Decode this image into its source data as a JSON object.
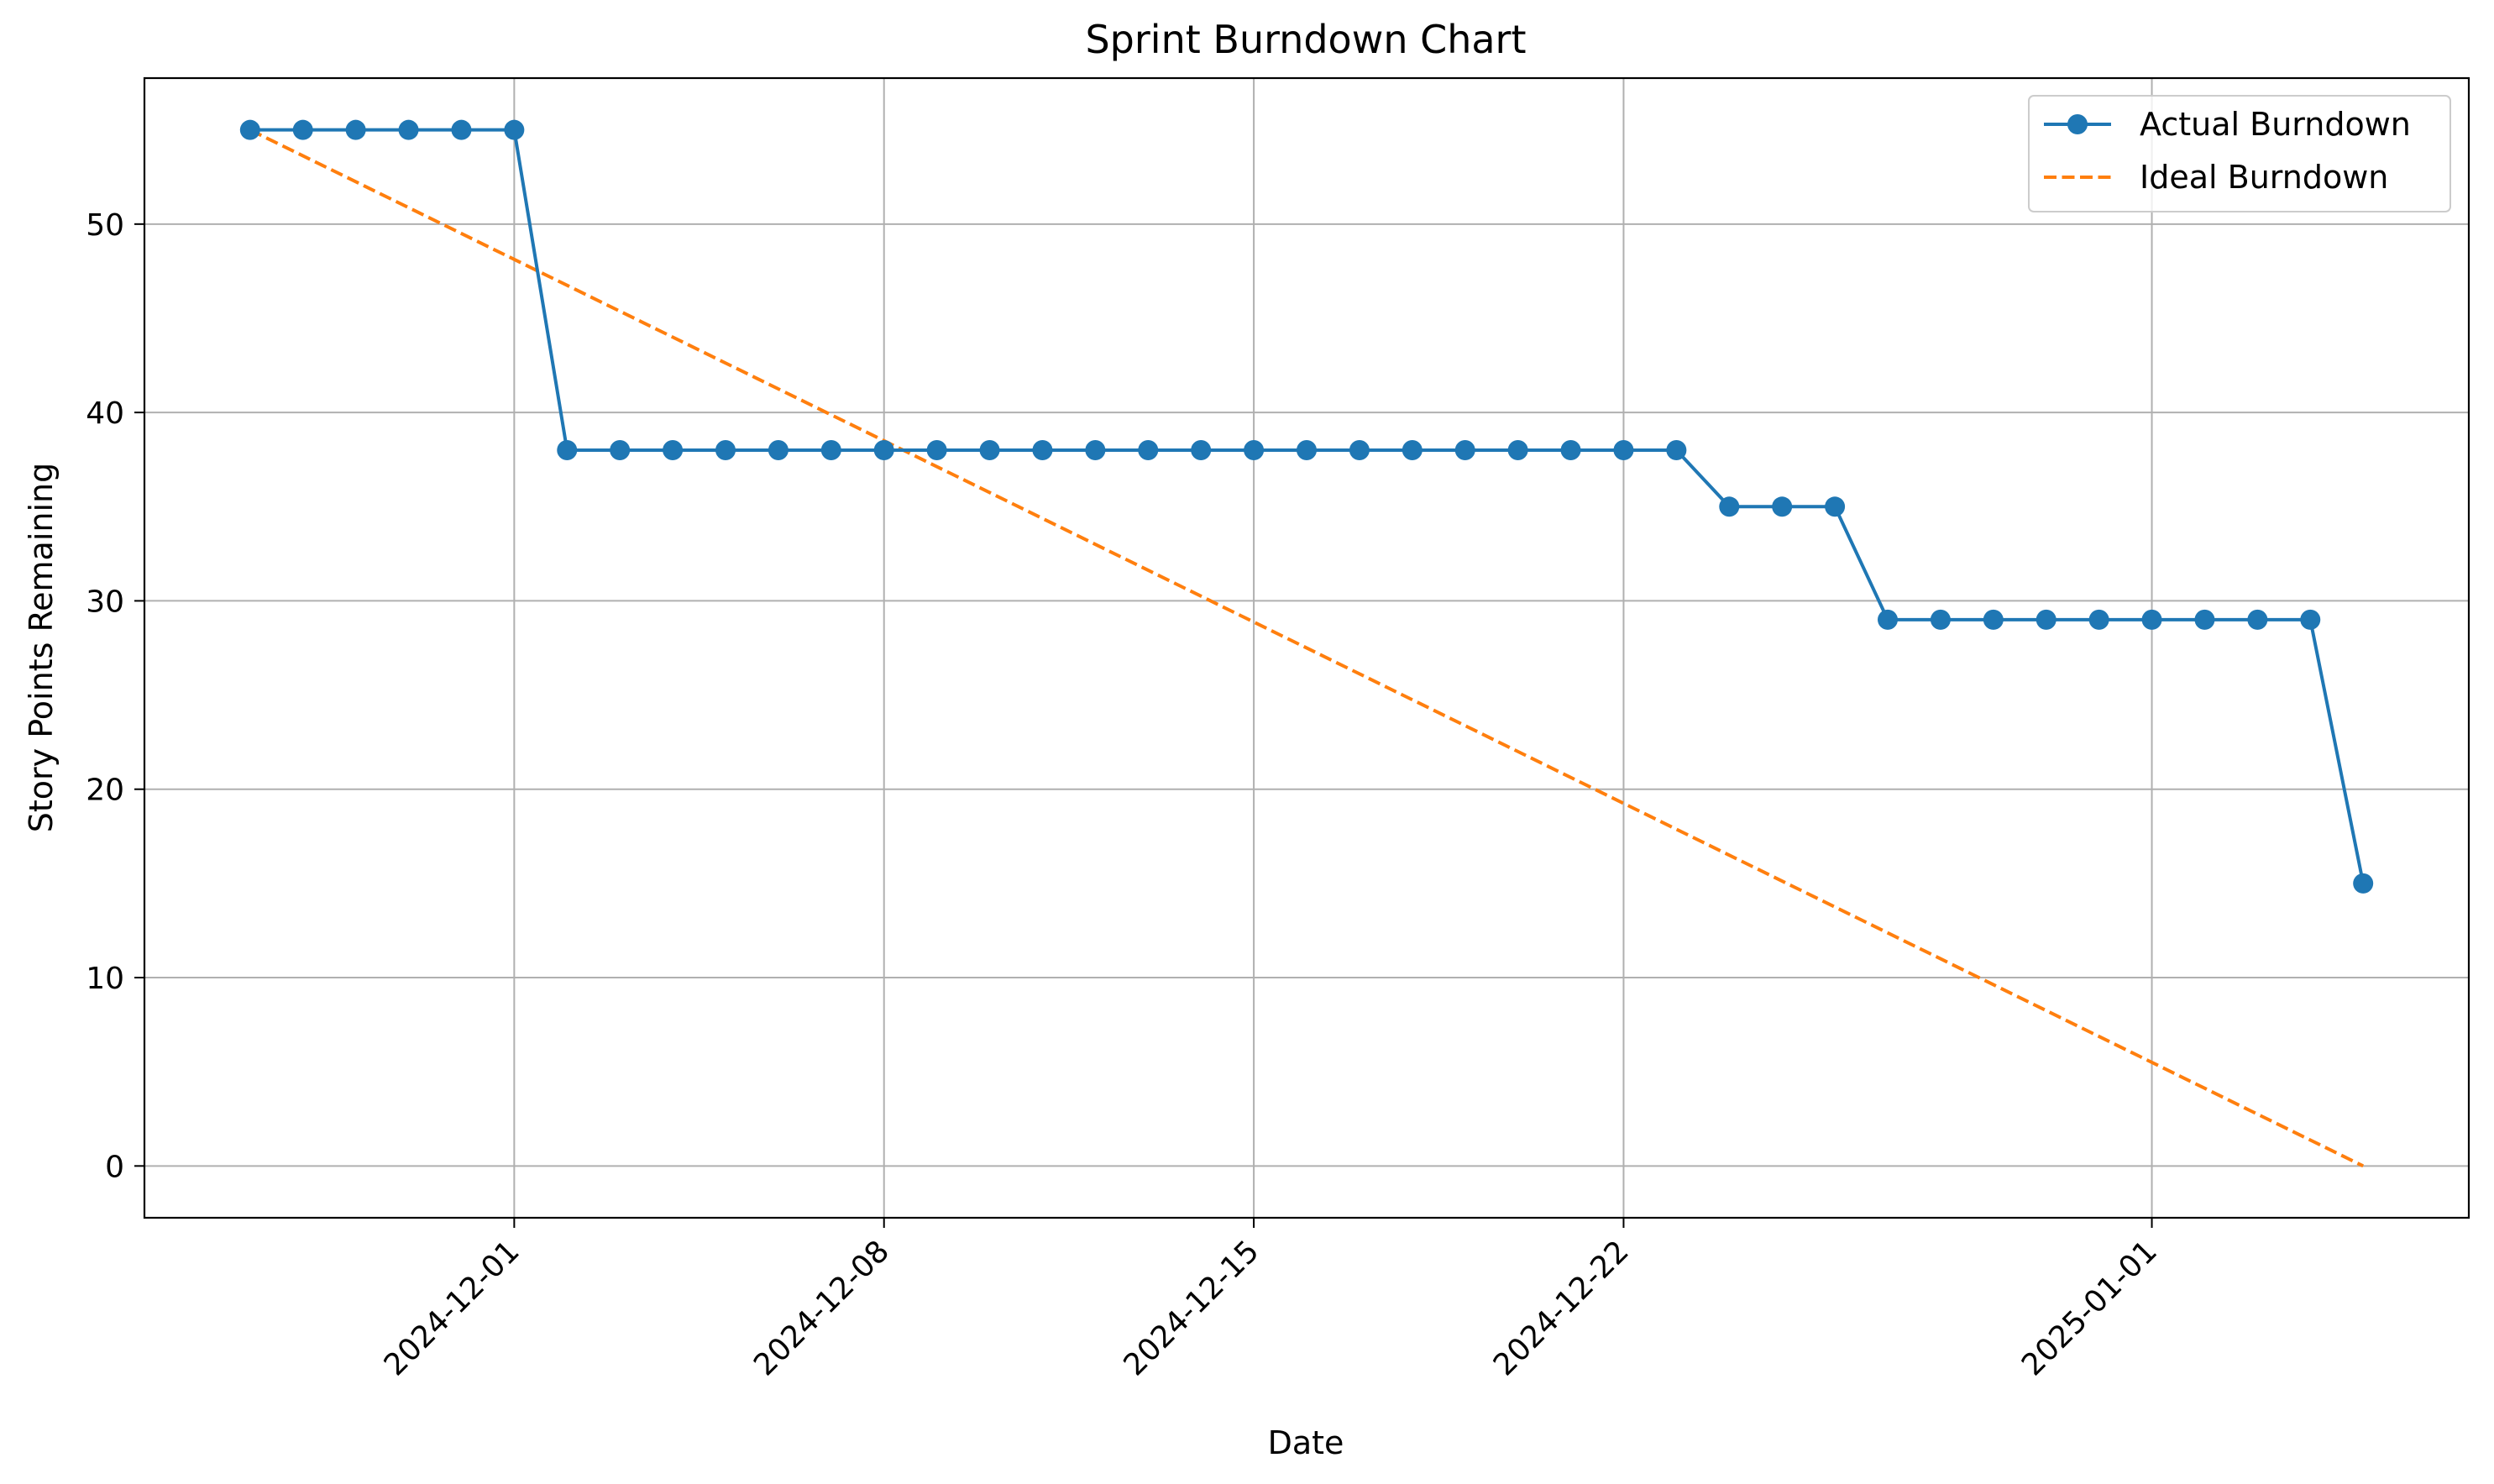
{
  "chart_data": {
    "type": "line",
    "title": "Sprint Burndown Chart",
    "xlabel": "Date",
    "ylabel": "Story Points Remaining",
    "x_tick_labels": [
      "2024-12-01",
      "2024-12-08",
      "2024-12-15",
      "2024-12-22",
      "2025-01-01"
    ],
    "y_ticks": [
      0,
      10,
      20,
      30,
      40,
      50
    ],
    "xlim": [
      "2024-11-24",
      "2025-01-07"
    ],
    "ylim": [
      -2.75,
      57.75
    ],
    "grid": true,
    "legend_position": "top-right",
    "x": [
      "2024-11-26",
      "2024-11-27",
      "2024-11-28",
      "2024-11-29",
      "2024-11-30",
      "2024-12-01",
      "2024-12-02",
      "2024-12-03",
      "2024-12-04",
      "2024-12-05",
      "2024-12-06",
      "2024-12-07",
      "2024-12-08",
      "2024-12-09",
      "2024-12-10",
      "2024-12-11",
      "2024-12-12",
      "2024-12-13",
      "2024-12-14",
      "2024-12-15",
      "2024-12-16",
      "2024-12-17",
      "2024-12-18",
      "2024-12-19",
      "2024-12-20",
      "2024-12-21",
      "2024-12-22",
      "2024-12-23",
      "2024-12-24",
      "2024-12-25",
      "2024-12-26",
      "2024-12-27",
      "2024-12-28",
      "2024-12-29",
      "2024-12-30",
      "2024-12-31",
      "2025-01-01",
      "2025-01-02",
      "2025-01-03",
      "2025-01-04",
      "2025-01-05"
    ],
    "series": [
      {
        "name": "Actual Burndown",
        "style": "solid-with-markers",
        "color": "#1f77b4",
        "values": [
          55,
          55,
          55,
          55,
          55,
          55,
          38,
          38,
          38,
          38,
          38,
          38,
          38,
          38,
          38,
          38,
          38,
          38,
          38,
          38,
          38,
          38,
          38,
          38,
          38,
          38,
          38,
          38,
          35,
          35,
          35,
          29,
          29,
          29,
          29,
          29,
          29,
          29,
          29,
          29,
          15
        ]
      },
      {
        "name": "Ideal Burndown",
        "style": "dashed",
        "color": "#ff7f0e",
        "points": [
          {
            "x": "2024-11-26",
            "y": 55
          },
          {
            "x": "2025-01-05",
            "y": 0
          }
        ]
      }
    ]
  }
}
